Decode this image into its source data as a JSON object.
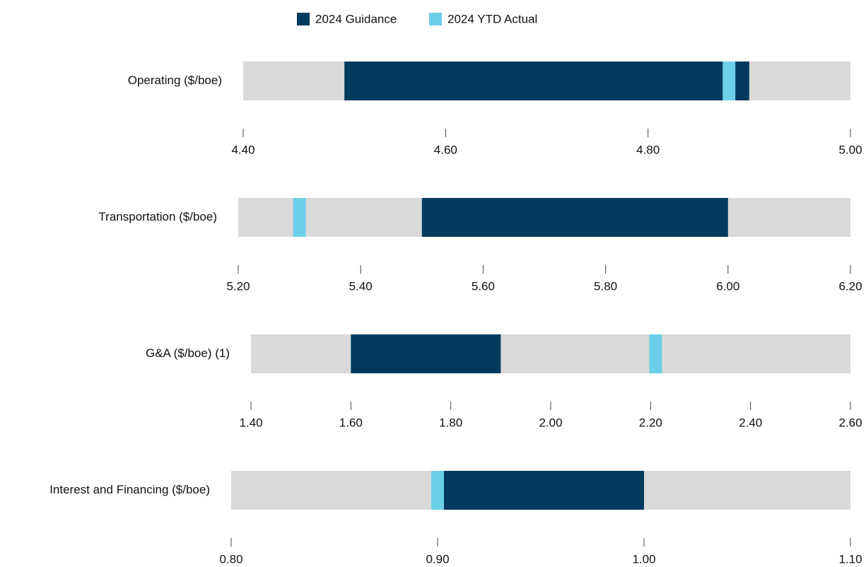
{
  "legend": [
    {
      "name": "2024 Guidance",
      "color": "#003a5c"
    },
    {
      "name": "2024 YTD Actual",
      "color": "#6ccfe8"
    }
  ],
  "background_color": "#d9d9d9",
  "chart_data": [
    {
      "type": "range",
      "title": "Operating ($/boe)",
      "guidance": [
        4.5,
        4.9
      ],
      "actual": 4.88,
      "xlim": [
        4.4,
        5.0
      ],
      "xticks": [
        {
          "value": 4.4,
          "label": "4.40"
        },
        {
          "value": 4.6,
          "label": "4.60"
        },
        {
          "value": 4.8,
          "label": "4.80"
        },
        {
          "value": 5.0,
          "label": "5.00"
        }
      ]
    },
    {
      "type": "range",
      "title": "Transportation ($/boe)",
      "guidance": [
        5.5,
        6.0
      ],
      "actual": 5.3,
      "xlim": [
        5.2,
        6.2
      ],
      "xticks": [
        {
          "value": 5.2,
          "label": "5.20"
        },
        {
          "value": 5.4,
          "label": "5.40"
        },
        {
          "value": 5.6,
          "label": "5.60"
        },
        {
          "value": 5.8,
          "label": "5.80"
        },
        {
          "value": 6.0,
          "label": "6.00"
        },
        {
          "value": 6.2,
          "label": "6.20"
        }
      ]
    },
    {
      "type": "range",
      "title": "G&A ($/boe) (1)",
      "guidance": [
        1.6,
        1.9
      ],
      "actual": 2.21,
      "xlim": [
        1.4,
        2.6
      ],
      "xticks": [
        {
          "value": 1.4,
          "label": "1.40"
        },
        {
          "value": 1.6,
          "label": "1.60"
        },
        {
          "value": 1.8,
          "label": "1.80"
        },
        {
          "value": 2.0,
          "label": "2.00"
        },
        {
          "value": 2.2,
          "label": "2.20"
        },
        {
          "value": 2.4,
          "label": "2.40"
        },
        {
          "value": 2.6,
          "label": "2.60"
        }
      ]
    },
    {
      "type": "range",
      "title": "Interest and Financing ($/boe)",
      "guidance": [
        0.9,
        1.0
      ],
      "actual": 0.9,
      "xlim": [
        0.8,
        1.1
      ],
      "xticks": [
        {
          "value": 0.8,
          "label": "0.80"
        },
        {
          "value": 0.9,
          "label": "0.90"
        },
        {
          "value": 1.0,
          "label": "1.00"
        },
        {
          "value": 1.1,
          "label": "1.10"
        }
      ]
    }
  ]
}
